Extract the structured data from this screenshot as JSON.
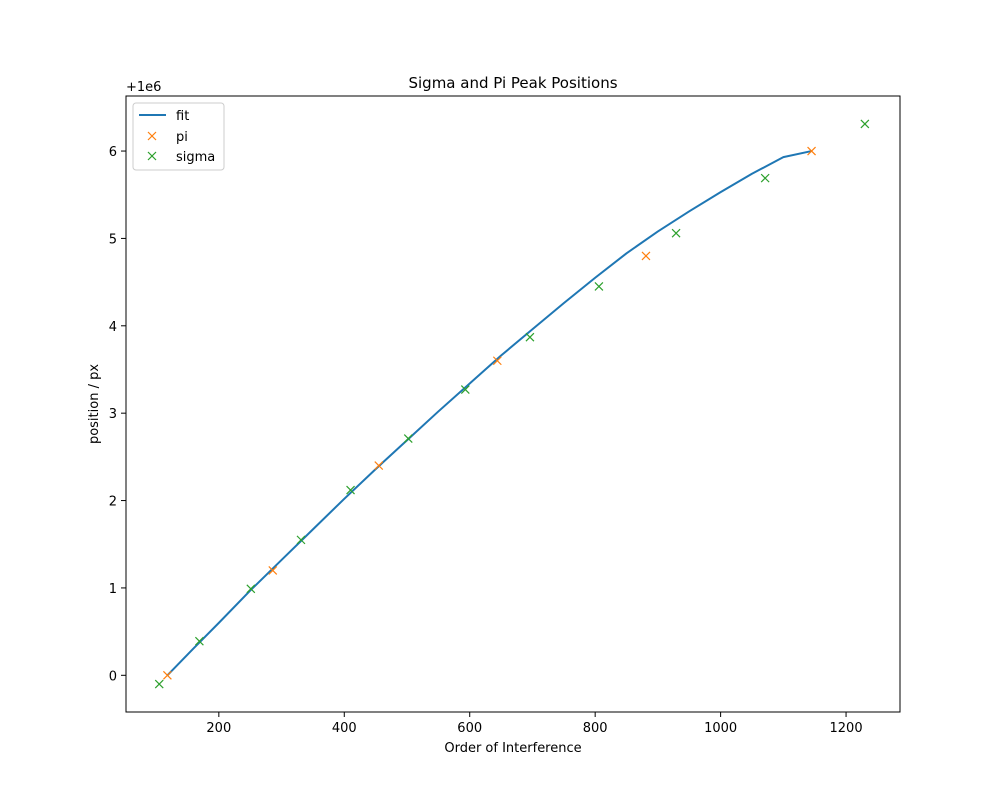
{
  "chart_data": {
    "type": "scatter",
    "title": "Sigma and Pi Peak Positions",
    "xlabel": "Order of Interference",
    "ylabel": "position / px",
    "offset_text": "+1e6",
    "y_offset": 1000000,
    "xlim": [
      52,
      1286
    ],
    "ylim": [
      -0.42,
      6.63
    ],
    "xticks": [
      200,
      400,
      600,
      800,
      1000,
      1200
    ],
    "yticks": [
      0,
      1,
      2,
      3,
      4,
      5,
      6
    ],
    "grid": false,
    "legend_position": "top-left",
    "series": [
      {
        "name": "fit",
        "kind": "line",
        "color": "#1f77b4",
        "x": [
          118,
          160,
          200,
          250,
          300,
          350,
          400,
          450,
          500,
          550,
          600,
          650,
          700,
          750,
          800,
          850,
          900,
          950,
          1000,
          1050,
          1100,
          1145
        ],
        "y": [
          0.0,
          0.31,
          0.6,
          0.97,
          1.32,
          1.67,
          2.02,
          2.36,
          2.69,
          3.02,
          3.34,
          3.66,
          3.96,
          4.26,
          4.55,
          4.83,
          5.08,
          5.31,
          5.53,
          5.74,
          5.93,
          6.0
        ]
      },
      {
        "name": "pi",
        "kind": "marker",
        "marker": "x",
        "color": "#ff7f0e",
        "x": [
          118,
          286,
          455,
          644,
          881,
          1145
        ],
        "y": [
          0.0,
          1.2,
          2.4,
          3.6,
          4.8,
          6.0
        ]
      },
      {
        "name": "sigma",
        "kind": "marker",
        "marker": "x",
        "color": "#2ca02c",
        "x": [
          105,
          169,
          251,
          331,
          410,
          502,
          593,
          696,
          806,
          929,
          1071,
          1230
        ],
        "y": [
          -0.1,
          0.39,
          0.99,
          1.55,
          2.12,
          2.71,
          3.27,
          3.87,
          4.45,
          5.06,
          5.69,
          6.31
        ]
      }
    ]
  }
}
